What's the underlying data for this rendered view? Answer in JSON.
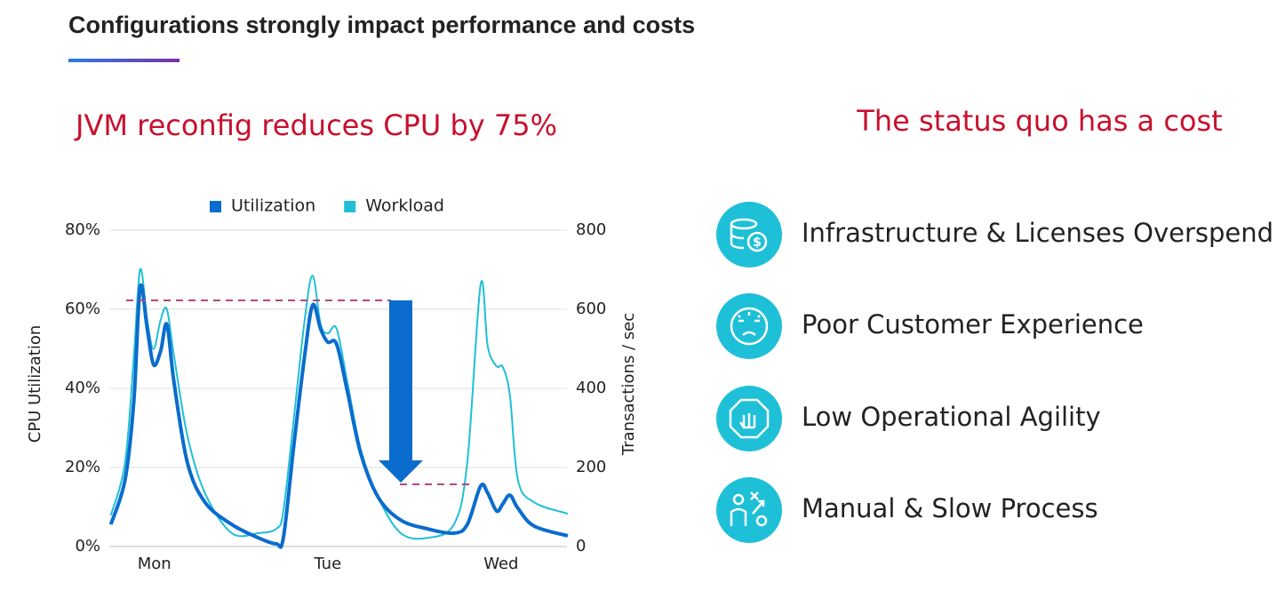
{
  "header": {
    "title": "Configurations strongly impact performance and costs"
  },
  "chart_data": {
    "type": "line",
    "title": "JVM reconfig reduces CPU by 75%",
    "x": [
      -0.251,
      -0.169,
      -0.118,
      -0.082,
      -0.041,
      -0.005,
      0.036,
      0.072,
      0.113,
      0.19,
      0.292,
      0.446,
      0.6,
      0.703,
      0.744,
      0.805,
      0.867,
      0.913,
      0.959,
      1.0,
      1.051,
      1.113,
      1.19,
      1.292,
      1.421,
      1.574,
      1.728,
      1.805,
      1.882,
      1.923,
      1.974,
      2.01,
      2.051,
      2.097,
      2.19,
      2.385
    ],
    "xlim": [
      -0.26,
      2.38
    ],
    "xticks": [
      {
        "value": 0,
        "label": "Mon"
      },
      {
        "value": 1,
        "label": "Tue"
      },
      {
        "value": 2,
        "label": "Wed"
      }
    ],
    "ylim": [
      0,
      80
    ],
    "yticks": [
      {
        "value": 0,
        "label": "0%"
      },
      {
        "value": 20,
        "label": "20%"
      },
      {
        "value": 40,
        "label": "40%"
      },
      {
        "value": 60,
        "label": "60%"
      },
      {
        "value": 80,
        "label": "80%"
      }
    ],
    "y2lim": [
      0,
      800
    ],
    "y2ticks": [
      0,
      200,
      400,
      600,
      800
    ],
    "ylabel": "CPU Utilization",
    "y2label": "Transactions / sec",
    "grid": true,
    "legend": "top",
    "series": [
      {
        "name": "Utilization",
        "color": "#0a6ccc",
        "values": [
          5.6,
          16.9,
          37,
          65.6,
          55,
          46,
          49.4,
          56.2,
          41.6,
          21.3,
          11.2,
          5.6,
          2.2,
          0.7,
          2.2,
          25.8,
          48.3,
          61.1,
          55,
          51.7,
          51.2,
          39.3,
          23.6,
          12.4,
          6.7,
          4.5,
          3.4,
          5.6,
          15.3,
          13.5,
          9,
          10.8,
          13,
          9.7,
          5.2,
          2.7
        ]
      },
      {
        "name": "Workload",
        "color": "#20bfd6",
        "axis": "y2",
        "values": [
          79,
          213,
          483,
          701,
          573,
          499,
          573,
          600,
          483,
          281,
          135,
          34,
          34,
          45,
          90,
          326,
          573,
          685,
          562,
          539,
          551,
          416,
          247,
          124,
          34,
          22,
          56,
          213,
          663,
          506,
          456,
          454,
          382,
          169,
          112,
          83
        ]
      }
    ]
  },
  "status_quo": {
    "title": "The status quo has a cost",
    "items": [
      "Infrastructure & Licenses Overspend",
      "Poor Customer Experience",
      "Low Operational Agility",
      "Manual & Slow Process"
    ]
  }
}
